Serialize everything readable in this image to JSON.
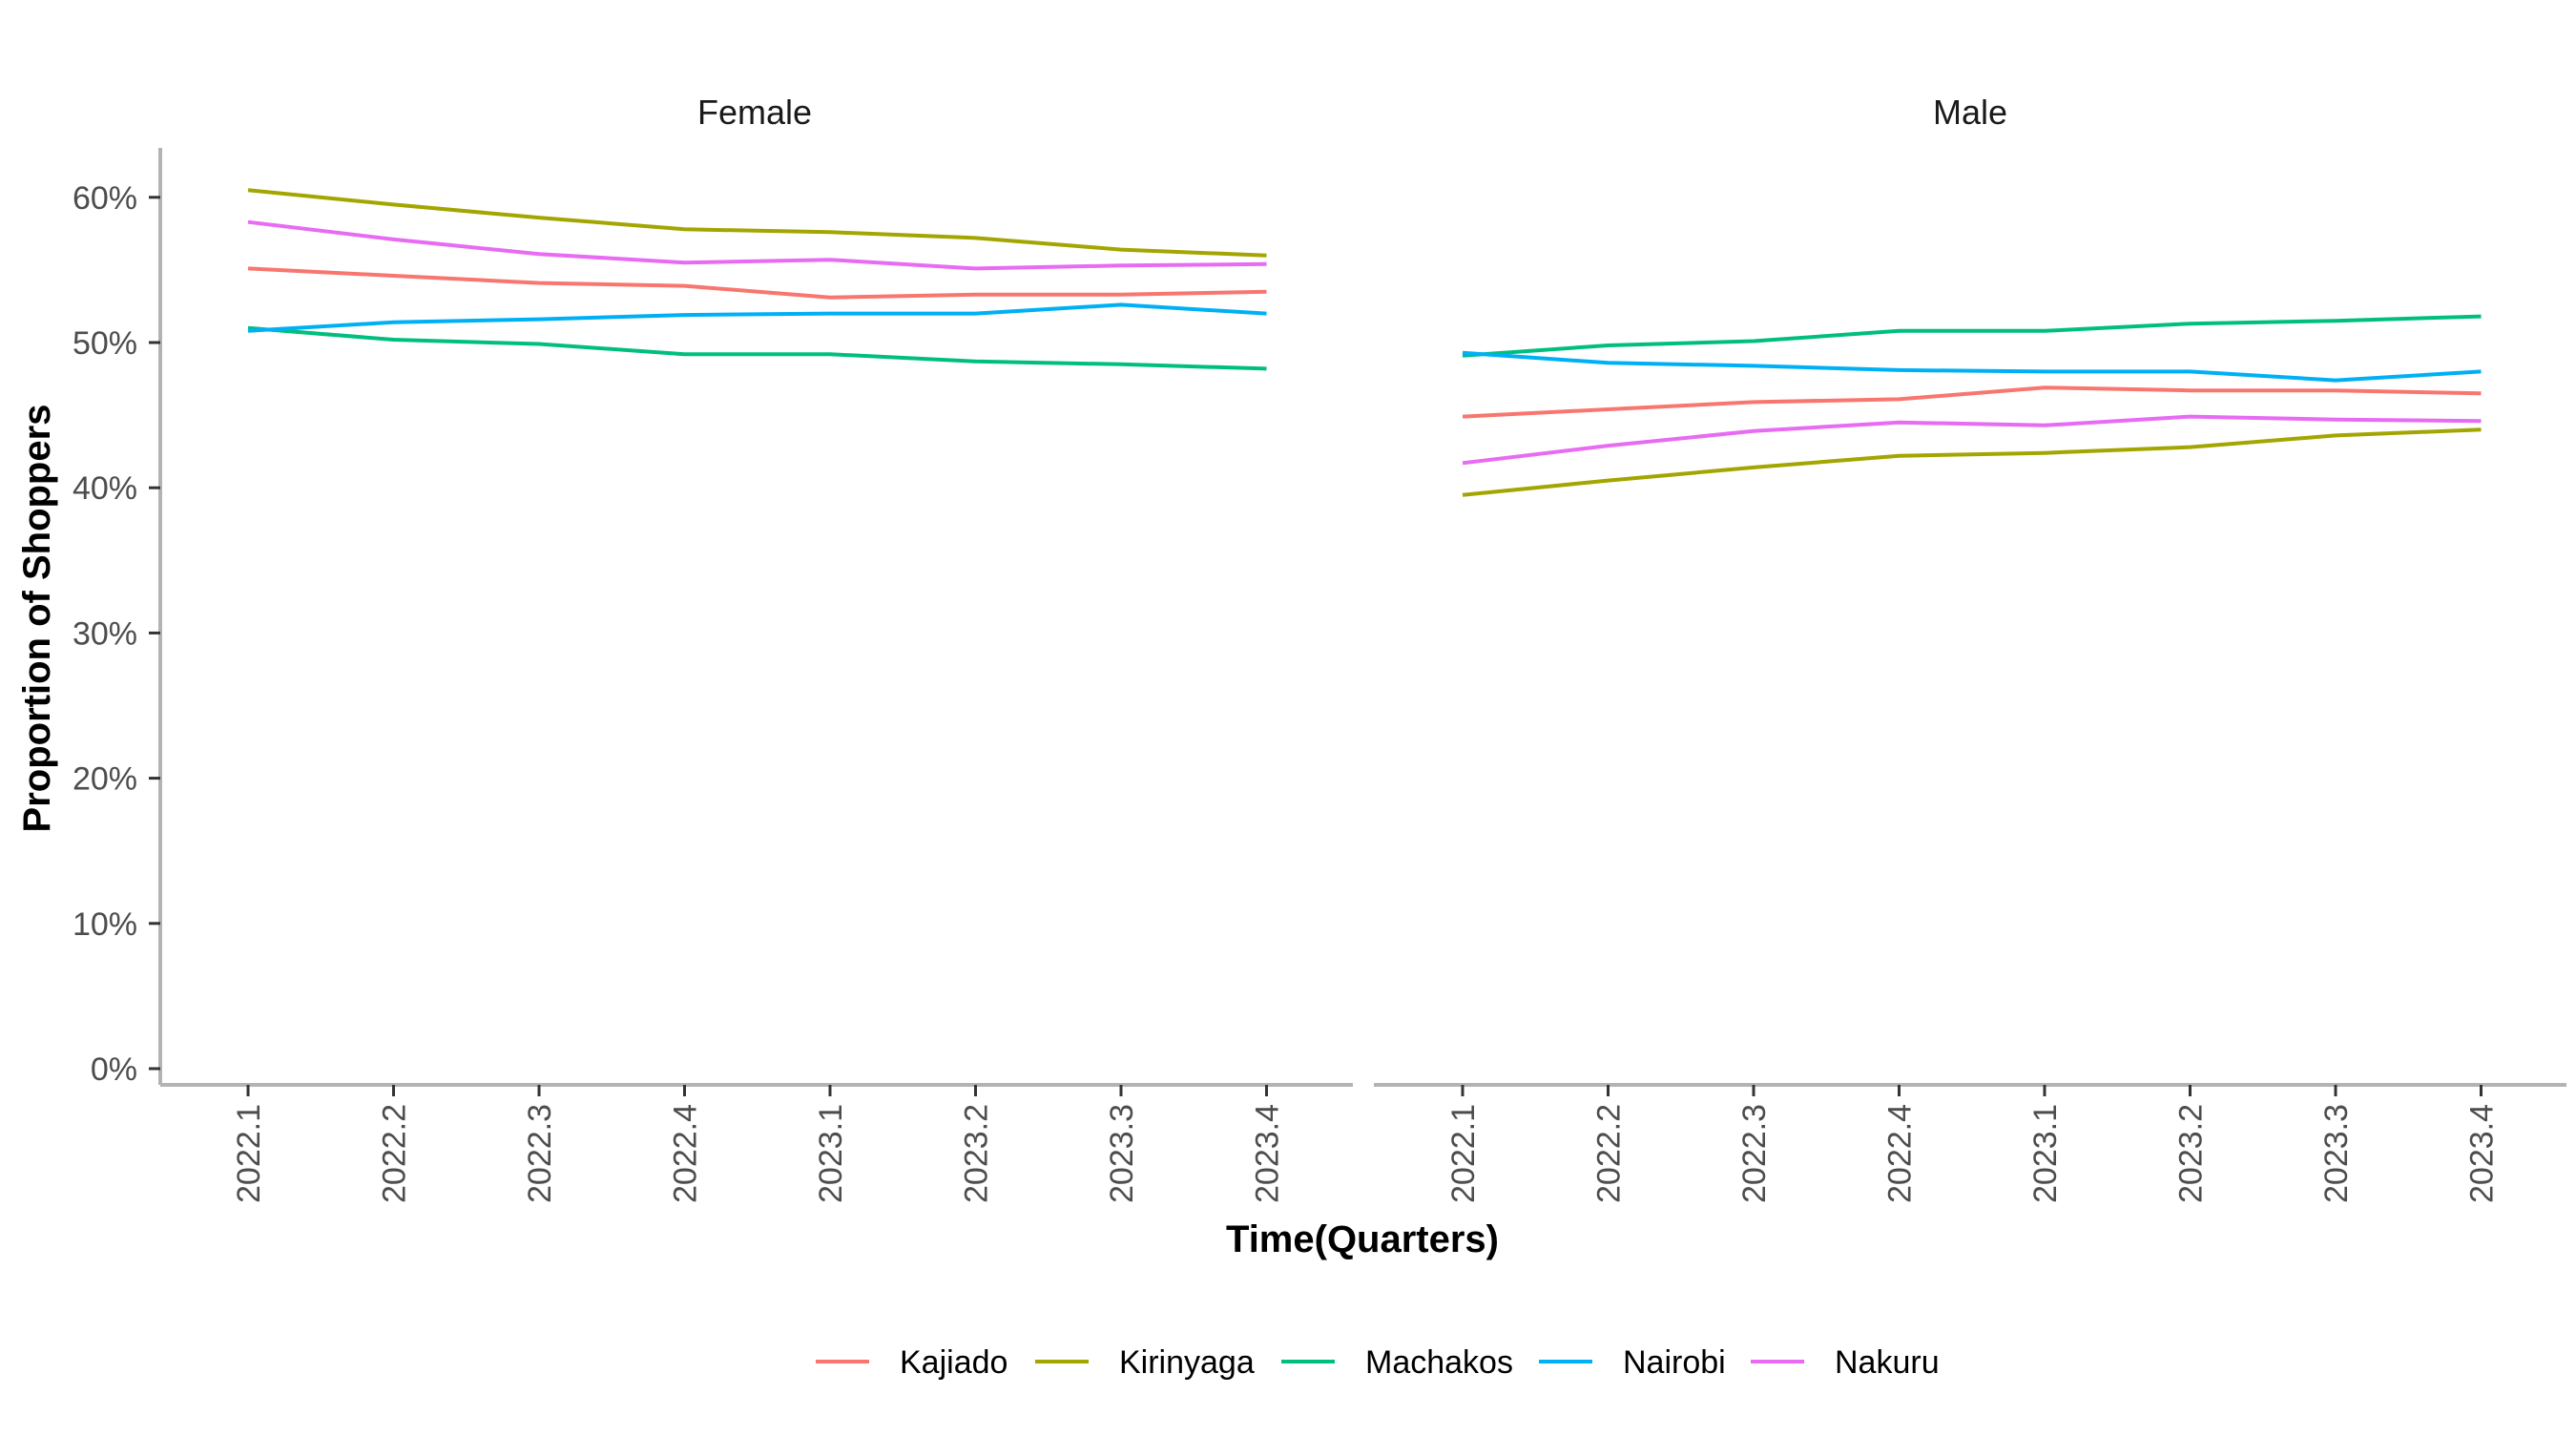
{
  "chart_data": {
    "type": "line",
    "facet_labels": [
      "Female",
      "Male"
    ],
    "xlabel": "Time(Quarters)",
    "ylabel": "Proportion of Shoppers",
    "x": [
      "2022.1",
      "2022.2",
      "2022.3",
      "2022.4",
      "2023.1",
      "2023.2",
      "2023.3",
      "2023.4"
    ],
    "y_ticks": [
      "0%",
      "10%",
      "20%",
      "30%",
      "40%",
      "50%",
      "60%"
    ],
    "ylim": [
      0,
      0.63
    ],
    "grid": false,
    "legend_position": "bottom",
    "facets": [
      {
        "label": "Female",
        "series": [
          {
            "name": "Kajiado",
            "color": "#F8766D",
            "values": [
              0.551,
              0.546,
              0.541,
              0.539,
              0.531,
              0.533,
              0.533,
              0.535
            ]
          },
          {
            "name": "Kirinyaga",
            "color": "#A3A500",
            "values": [
              0.605,
              0.595,
              0.586,
              0.578,
              0.576,
              0.572,
              0.564,
              0.56
            ]
          },
          {
            "name": "Machakos",
            "color": "#00BF7D",
            "values": [
              0.51,
              0.502,
              0.499,
              0.492,
              0.492,
              0.487,
              0.485,
              0.482
            ]
          },
          {
            "name": "Nairobi",
            "color": "#00B0F6",
            "values": [
              0.508,
              0.514,
              0.516,
              0.519,
              0.52,
              0.52,
              0.526,
              0.52
            ]
          },
          {
            "name": "Nakuru",
            "color": "#E76BF3",
            "values": [
              0.583,
              0.571,
              0.561,
              0.555,
              0.557,
              0.551,
              0.553,
              0.554
            ]
          }
        ]
      },
      {
        "label": "Male",
        "series": [
          {
            "name": "Kajiado",
            "color": "#F8766D",
            "values": [
              0.449,
              0.454,
              0.459,
              0.461,
              0.469,
              0.467,
              0.467,
              0.465
            ]
          },
          {
            "name": "Kirinyaga",
            "color": "#A3A500",
            "values": [
              0.395,
              0.405,
              0.414,
              0.422,
              0.424,
              0.428,
              0.436,
              0.44
            ]
          },
          {
            "name": "Machakos",
            "color": "#00BF7D",
            "values": [
              0.491,
              0.498,
              0.501,
              0.508,
              0.508,
              0.513,
              0.515,
              0.518
            ]
          },
          {
            "name": "Nairobi",
            "color": "#00B0F6",
            "values": [
              0.493,
              0.486,
              0.484,
              0.481,
              0.48,
              0.48,
              0.474,
              0.48
            ]
          },
          {
            "name": "Nakuru",
            "color": "#E76BF3",
            "values": [
              0.417,
              0.429,
              0.439,
              0.445,
              0.443,
              0.449,
              0.447,
              0.446
            ]
          }
        ]
      }
    ],
    "legend": [
      {
        "name": "Kajiado",
        "color": "#F8766D"
      },
      {
        "name": "Kirinyaga",
        "color": "#A3A500"
      },
      {
        "name": "Machakos",
        "color": "#00BF7D"
      },
      {
        "name": "Nairobi",
        "color": "#00B0F6"
      },
      {
        "name": "Nakuru",
        "color": "#E76BF3"
      }
    ]
  }
}
